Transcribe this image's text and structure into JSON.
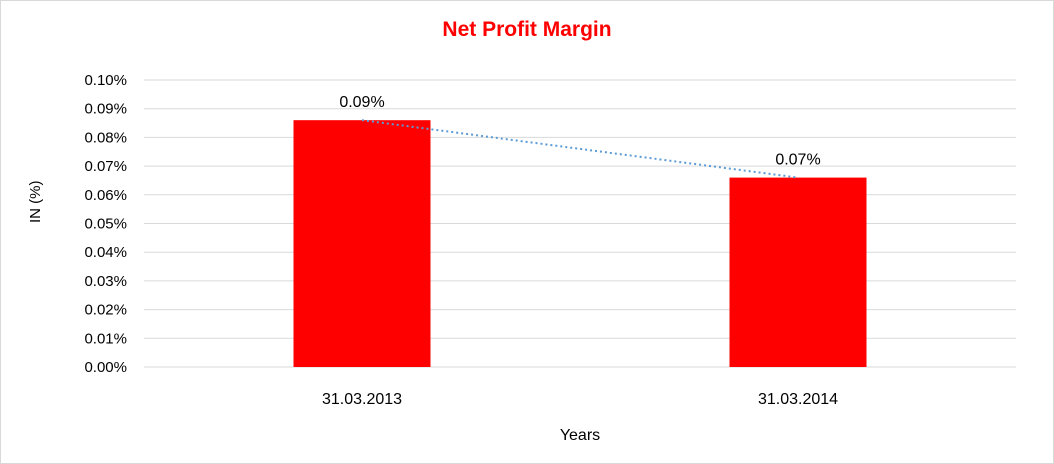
{
  "chart_data": {
    "type": "bar",
    "title": "Net Profit Margin",
    "xlabel": "Years",
    "ylabel": "IN (%)",
    "categories": [
      "31.03.2013",
      "31.03.2014"
    ],
    "values": [
      0.086,
      0.066
    ],
    "data_labels": [
      "0.09%",
      "0.07%"
    ],
    "ylim": [
      0,
      0.1
    ],
    "yticks": [
      "0.00%",
      "0.01%",
      "0.02%",
      "0.03%",
      "0.04%",
      "0.05%",
      "0.06%",
      "0.07%",
      "0.08%",
      "0.09%",
      "0.10%"
    ],
    "grid": true,
    "trendline": "linear, dotted",
    "legend": "none",
    "colors": {
      "bar": "#ff0000",
      "title": "#ff0000",
      "trendline": "#5b9bd5",
      "grid": "#d9d9d9"
    }
  }
}
